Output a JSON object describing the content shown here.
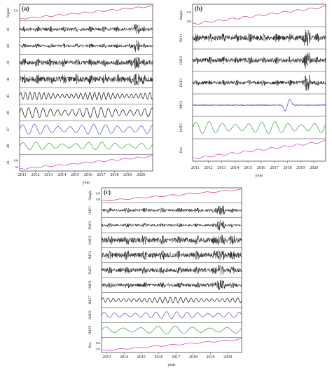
{
  "chart_data": [
    {
      "type": "line",
      "panel_label": "(a)",
      "xlabel": "year",
      "x_tick_labels": [
        "2011",
        "2012",
        "2013",
        "2014",
        "2015",
        "2016",
        "2017",
        "2018",
        "2019",
        "2020"
      ],
      "xlim": [
        2010.8,
        2020.9
      ],
      "series": [
        {
          "name": "Signal",
          "kind": "trend",
          "color": "#d6336c",
          "range": [
            70,
            160
          ],
          "ticks": [
            "130"
          ]
        },
        {
          "name": "d1",
          "kind": "noise",
          "color": "#111111",
          "amp": 0.25,
          "spike": 2019.7
        },
        {
          "name": "d2",
          "kind": "noise",
          "color": "#111111",
          "amp": 0.2,
          "spike": 2019.7
        },
        {
          "name": "d3",
          "kind": "noise",
          "color": "#111111",
          "amp": 0.35,
          "spike": 2019.7
        },
        {
          "name": "d4",
          "kind": "noise",
          "color": "#111111",
          "amp": 0.45,
          "spike": 2019.7
        },
        {
          "name": "d5",
          "kind": "osc",
          "color": "#111111",
          "period": 0.35,
          "amp": 0.6
        },
        {
          "name": "d6",
          "kind": "osc",
          "color": "#111111",
          "period": 0.55,
          "amp": 0.8
        },
        {
          "name": "d7",
          "kind": "osc",
          "color": "#4a4ad6",
          "period": 0.9,
          "amp": 0.8
        },
        {
          "name": "d8",
          "kind": "osc",
          "color": "#3a9a3a",
          "period": 1.0,
          "amp": 0.6
        },
        {
          "name": "a8",
          "kind": "trend",
          "color": "#d633c9",
          "range": [
            60,
            160
          ],
          "ticks": [
            "100",
            "50"
          ]
        }
      ]
    },
    {
      "type": "line",
      "panel_label": "(b)",
      "xlabel": "year",
      "x_tick_labels": [
        "2011",
        "2012",
        "2013",
        "2014",
        "2015",
        "2016",
        "2017",
        "2018",
        "2019",
        "2020"
      ],
      "xlim": [
        2010.8,
        2020.9
      ],
      "series": [
        {
          "name": "Single",
          "kind": "trend",
          "color": "#d6336c",
          "range": [
            70,
            160
          ],
          "ticks": [
            "150",
            "100"
          ]
        },
        {
          "name": "IMF1",
          "kind": "noise",
          "color": "#111111",
          "amp": 0.3,
          "spike": 2019.5
        },
        {
          "name": "IMF2",
          "kind": "noise",
          "color": "#111111",
          "amp": 0.25,
          "spike": 2019.5
        },
        {
          "name": "IMF3",
          "kind": "noise",
          "color": "#111111",
          "amp": 0.2,
          "spike": 2019.5
        },
        {
          "name": "IMF4",
          "kind": "bump",
          "color": "#4a4ad6",
          "center": 2018.0
        },
        {
          "name": "IMF5",
          "kind": "osc",
          "color": "#3a9a3a",
          "period": 1.0,
          "amp": 0.7
        },
        {
          "name": "Res",
          "kind": "trend",
          "color": "#d633c9",
          "range": [
            60,
            160
          ],
          "ticks": []
        }
      ]
    },
    {
      "type": "line",
      "panel_label": "(c)",
      "xlabel": "year",
      "x_tick_labels": [
        "2013",
        "2014",
        "2015",
        "2016",
        "2017",
        "2018",
        "2019",
        "2020"
      ],
      "xlim": [
        2012.7,
        2020.8
      ],
      "series": [
        {
          "name": "Single",
          "kind": "trend",
          "color": "#d6336c",
          "range": [
            100,
            160
          ],
          "ticks": [
            "160",
            "130"
          ]
        },
        {
          "name": "IMF1",
          "kind": "noise",
          "color": "#111111",
          "amp": 0.25,
          "spike": 2019.6
        },
        {
          "name": "IMF2",
          "kind": "noise",
          "color": "#111111",
          "amp": 0.2,
          "spike": 2019.6
        },
        {
          "name": "IMF3",
          "kind": "noise",
          "color": "#111111",
          "amp": 0.45,
          "spike": 2019.6
        },
        {
          "name": "IMF4",
          "kind": "noise",
          "color": "#111111",
          "amp": 0.45,
          "spike": 2019.6
        },
        {
          "name": "IMF5",
          "kind": "noise",
          "color": "#111111",
          "amp": 0.35,
          "spike": 2019.6
        },
        {
          "name": "IMF6",
          "kind": "noise",
          "color": "#111111",
          "amp": 0.3,
          "spike": 2019.6
        },
        {
          "name": "IMF7",
          "kind": "osc",
          "color": "#111111",
          "period": 0.3,
          "amp": 0.5
        },
        {
          "name": "IMF8",
          "kind": "osc",
          "color": "#4a4ad6",
          "period": 0.6,
          "amp": 0.6
        },
        {
          "name": "IMF9",
          "kind": "osc",
          "color": "#3a9a3a",
          "period": 1.0,
          "amp": 0.7
        },
        {
          "name": "Res",
          "kind": "trend",
          "color": "#d633c9",
          "range": [
            100,
            160
          ],
          "ticks": [
            "160",
            "120"
          ]
        }
      ]
    }
  ]
}
